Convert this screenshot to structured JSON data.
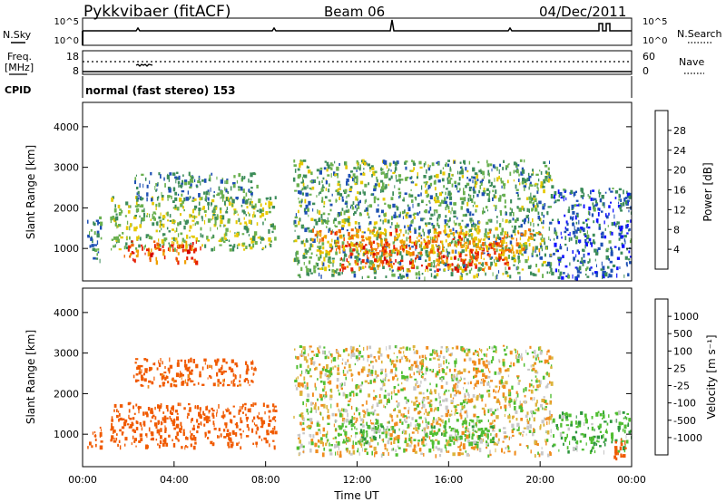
{
  "header": {
    "title": "Pykkvibaer (fitACF)",
    "beam": "Beam 06",
    "date": "04/Dec/2011"
  },
  "nsky_panel": {
    "left_label": "N.Sky",
    "right_label": "N.Search",
    "left_ticks": [
      "10^5",
      "10^0"
    ],
    "right_ticks": [
      "10^5",
      "10^0"
    ]
  },
  "freq_panel": {
    "left_label_line1": "Freq.",
    "left_label_line2": "[MHz]",
    "right_label": "Nave",
    "left_ticks": [
      "18",
      "8"
    ],
    "right_ticks": [
      "60",
      "0"
    ]
  },
  "cpid": {
    "label": "CPID",
    "text": "normal (fast stereo) 153"
  },
  "colors": {
    "power": [
      "#0f12ff",
      "#1e50b4",
      "#3c8c5a",
      "#6ab050",
      "#e6c800",
      "#f0a000",
      "#f06400",
      "#e61e00",
      "#d20000"
    ],
    "velocity": [
      "#dc0000",
      "#f05a00",
      "#f08c1e",
      "#dcb43c",
      "#c8c8c8",
      "#50be32",
      "#2d963c",
      "#1e5aa0",
      "#1428c8"
    ]
  },
  "chart_data": [
    {
      "type": "heatmap",
      "name": "power",
      "ylabel": "Slant Range [km]",
      "xlabel": "",
      "xlim": [
        0,
        24
      ],
      "ylim": [
        200,
        4600
      ],
      "yticks": [
        1000,
        2000,
        3000,
        4000
      ],
      "colorbar": {
        "label": "Power [dB]",
        "range": [
          0,
          32
        ],
        "tick_values": [
          4,
          8,
          12,
          16,
          20,
          24,
          28
        ],
        "ticks": [
          "4",
          "8",
          "12",
          "16",
          "20",
          "24",
          "28"
        ]
      },
      "regions": [
        {
          "t": [
            0.2,
            0.8
          ],
          "r": [
            600,
            1800
          ],
          "value": 10
        },
        {
          "t": [
            1.2,
            8.4
          ],
          "r": [
            1000,
            2300
          ],
          "value": 14
        },
        {
          "t": [
            1.8,
            5.2
          ],
          "r": [
            700,
            1200
          ],
          "value": 27
        },
        {
          "t": [
            2.2,
            7.6
          ],
          "r": [
            2200,
            2900
          ],
          "value": 10
        },
        {
          "t": [
            9.2,
            20.5
          ],
          "r": [
            300,
            3200
          ],
          "value": 12
        },
        {
          "t": [
            11.2,
            18.6
          ],
          "r": [
            500,
            1200
          ],
          "value": 27
        },
        {
          "t": [
            10.0,
            20.0
          ],
          "r": [
            900,
            1500
          ],
          "value": 23
        },
        {
          "t": [
            20.5,
            24.0
          ],
          "r": [
            300,
            2500
          ],
          "value": 7
        }
      ]
    },
    {
      "type": "heatmap",
      "name": "velocity",
      "ylabel": "Slant Range [km]",
      "xlabel": "Time UT",
      "xlim": [
        0,
        24
      ],
      "ylim": [
        200,
        4600
      ],
      "yticks": [
        1000,
        2000,
        3000,
        4000
      ],
      "xticks": [
        "00:00",
        "04:00",
        "08:00",
        "12:00",
        "16:00",
        "20:00",
        "00:00"
      ],
      "colorbar": {
        "label": "Velocity [m s⁻¹]",
        "ticks": [
          "1000",
          "500",
          "100",
          "25",
          "-25",
          "-100",
          "-500",
          "-1000"
        ]
      },
      "regions": [
        {
          "t": [
            0.2,
            0.8
          ],
          "r": [
            600,
            1200
          ],
          "value": -300
        },
        {
          "t": [
            1.2,
            8.4
          ],
          "r": [
            700,
            1800
          ],
          "value": -200
        },
        {
          "t": [
            2.2,
            7.6
          ],
          "r": [
            2200,
            2900
          ],
          "value": -150
        },
        {
          "t": [
            9.2,
            20.5
          ],
          "r": [
            500,
            3200
          ],
          "value": 0
        },
        {
          "t": [
            11.0,
            18.0
          ],
          "r": [
            800,
            1400
          ],
          "value": 60
        },
        {
          "t": [
            20.5,
            24.0
          ],
          "r": [
            600,
            1600
          ],
          "value": 80
        },
        {
          "t": [
            23.2,
            24.0
          ],
          "r": [
            400,
            900
          ],
          "value": -400
        }
      ]
    }
  ]
}
